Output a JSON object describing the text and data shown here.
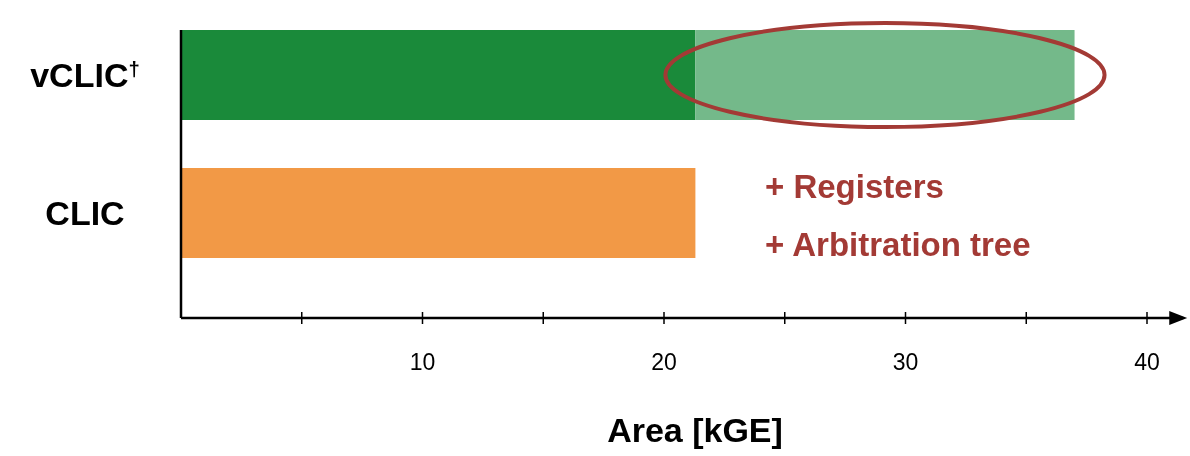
{
  "chart_data": {
    "type": "bar",
    "orientation": "horizontal",
    "stacked": true,
    "categories": [
      "vCLIC$^{†}$",
      "CLIC"
    ],
    "series": [
      {
        "colors": [
          "#1a8a3a",
          "#f29946"
        ],
        "values": [
          21.3,
          21.3
        ]
      },
      {
        "color": "#74b98a",
        "values": [
          15.7,
          null
        ]
      }
    ],
    "xlim": [
      0,
      41.5
    ],
    "xticks": [
      {
        "value": 5,
        "label": null
      },
      10,
      {
        "value": 15,
        "label": null
      },
      20,
      {
        "value": 25,
        "label": null
      },
      30,
      {
        "value": 35,
        "label": null
      },
      40
    ],
    "xlabel": "Area [kGE]",
    "annotations": [
      "+ Registers",
      "+ Arbitration tree"
    ]
  }
}
